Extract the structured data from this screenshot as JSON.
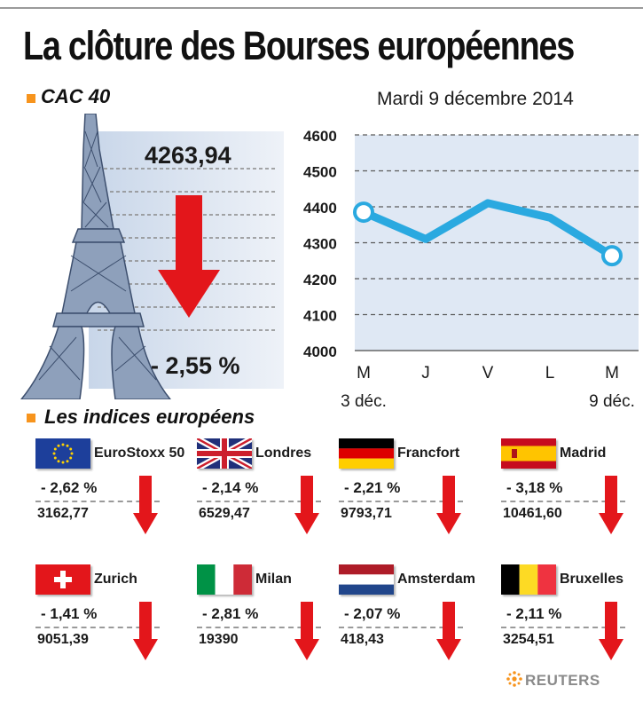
{
  "title": "La clôture des Bourses européennes",
  "cac": {
    "label": "CAC 40",
    "value": "4263,94",
    "change": "- 2,55 %",
    "direction": "down"
  },
  "date": "Mardi 9 décembre 2014",
  "chart_data": {
    "type": "line",
    "categories": [
      "M",
      "J",
      "V",
      "L",
      "M"
    ],
    "values": [
      4385,
      4310,
      4410,
      4370,
      4263.94
    ],
    "xnotes": [
      "3 déc.",
      "9 déc."
    ],
    "yticks": [
      "4600",
      "4500",
      "4400",
      "4300",
      "4200",
      "4100",
      "4000"
    ],
    "ylim": [
      4000,
      4600
    ],
    "grid": true,
    "line_color": "#2aa9e0"
  },
  "europe": {
    "label": "Les indices européens",
    "items": [
      {
        "name": "EuroStoxx 50",
        "change": "- 2,62  %",
        "value": "3162,77",
        "flag": "eu-flag",
        "direction": "down"
      },
      {
        "name": "Londres",
        "change": "- 2,14  %",
        "value": "6529,47",
        "flag": "uk-flag",
        "direction": "down"
      },
      {
        "name": "Francfort",
        "change": "- 2,21  %",
        "value": "9793,71",
        "flag": "germany-flag",
        "direction": "down"
      },
      {
        "name": "Madrid",
        "change": "- 3,18  %",
        "value": "10461,60",
        "flag": "spain-flag",
        "direction": "down"
      },
      {
        "name": "Zurich",
        "change": "- 1,41  %",
        "value": "9051,39",
        "flag": "switzerland-flag",
        "direction": "down"
      },
      {
        "name": "Milan",
        "change": "- 2,81  %",
        "value": "19390",
        "flag": "italy-flag",
        "direction": "down"
      },
      {
        "name": "Amsterdam",
        "change": "- 2,07  %",
        "value": "418,43",
        "flag": "netherlands-flag",
        "direction": "down"
      },
      {
        "name": "Bruxelles",
        "change": "- 2,11  %",
        "value": "3254,51",
        "flag": "belgium-flag",
        "direction": "down"
      }
    ]
  },
  "credit": "REUTERS",
  "colors": {
    "accent": "#f7941d",
    "down_arrow": "#e3161b",
    "line": "#2aa9e0",
    "panel": "#dfe8f4"
  }
}
